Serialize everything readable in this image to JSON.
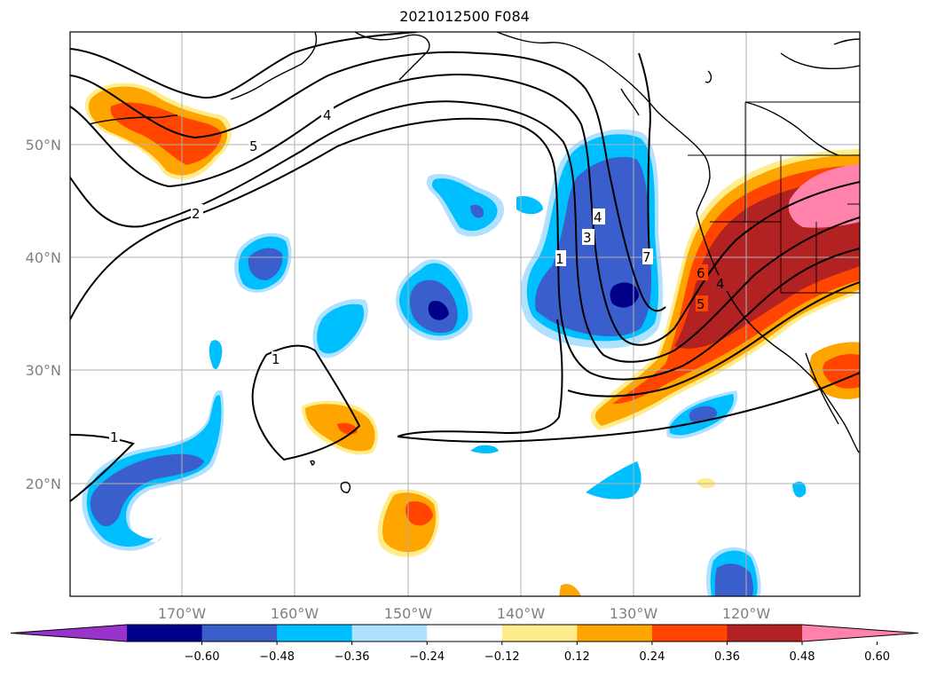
{
  "title": "2021012500 F084",
  "lat_labels": [
    "50°N",
    "40°N",
    "30°N",
    "20°N"
  ],
  "lon_labels": [
    "170°W",
    "160°W",
    "150°W",
    "140°W",
    "130°W",
    "120°W"
  ],
  "colorbar": {
    "colors": [
      "#9933cc",
      "#00008b",
      "#3a5fcd",
      "#00bfff",
      "#b0e2ff",
      "#ffffff",
      "#ffec8b",
      "#ffa500",
      "#ff4500",
      "#b22222",
      "#ff82ab"
    ],
    "ticks": [
      "−0.60",
      "−0.48",
      "−0.36",
      "−0.24",
      "−0.12",
      "0.12",
      "0.24",
      "0.36",
      "0.48",
      "0.60"
    ]
  },
  "contour_labels": [
    "5",
    "4",
    "2",
    "1",
    "1",
    "4",
    "3",
    "1",
    "7",
    "6",
    "5",
    "4"
  ]
}
